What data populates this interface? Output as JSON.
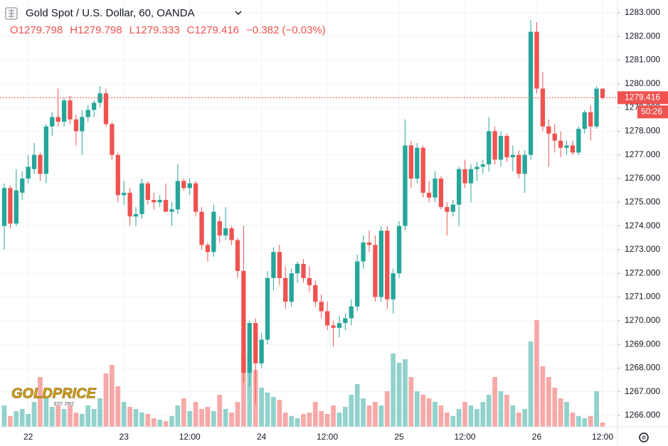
{
  "chart_data": {
    "type": "candlestick",
    "title": "Gold Spot / U.S. Dollar, 60, OANDA",
    "ohlc_labels": [
      "O",
      "H",
      "L",
      "C"
    ],
    "ohlc_values": [
      1279.798,
      1279.798,
      1279.333,
      1279.416
    ],
    "change": "−0.382 (−0.03%)",
    "logo": "GOLDPRICE",
    "logo_sub": "EST. 2002",
    "up_color": "#26a69a",
    "down_color": "#ef5350",
    "ylim": [
      1265.52,
      1283.54
    ],
    "yticks": [
      {
        "value": 1266,
        "label": "1266.000"
      },
      {
        "value": 1267,
        "label": "1267.000"
      },
      {
        "value": 1268,
        "label": "1268.000"
      },
      {
        "value": 1269,
        "label": "1269.000"
      },
      {
        "value": 1270,
        "label": "1270.000"
      },
      {
        "value": 1271,
        "label": "1271.000"
      },
      {
        "value": 1272,
        "label": "1272.000"
      },
      {
        "value": 1273,
        "label": "1273.000"
      },
      {
        "value": 1274,
        "label": "1274.000"
      },
      {
        "value": 1275,
        "label": "1275.000"
      },
      {
        "value": 1276,
        "label": "1276.000"
      },
      {
        "value": 1277,
        "label": "1277.000"
      },
      {
        "value": 1278,
        "label": "1278.000"
      },
      {
        "value": 1279,
        "label": "1279.000"
      },
      {
        "value": 1280,
        "label": "1280.000"
      },
      {
        "value": 1281,
        "label": "1281.000"
      },
      {
        "value": 1282,
        "label": "1282.000"
      },
      {
        "value": 1283,
        "label": "1283.000"
      }
    ],
    "last_price": {
      "value": 1279.416,
      "label": "1279.416"
    },
    "countdown": "50:26",
    "grid": true,
    "categories": [
      null,
      null,
      null,
      null,
      "22",
      null,
      null,
      null,
      null,
      null,
      null,
      null,
      null,
      null,
      null,
      null,
      null,
      null,
      null,
      null,
      "23",
      null,
      null,
      null,
      null,
      null,
      null,
      null,
      null,
      null,
      null,
      "12:00",
      null,
      null,
      null,
      null,
      null,
      null,
      null,
      null,
      null,
      null,
      null,
      "24",
      null,
      null,
      null,
      null,
      null,
      null,
      null,
      null,
      null,
      null,
      "12:00",
      null,
      null,
      null,
      null,
      null,
      null,
      null,
      null,
      null,
      null,
      null,
      "25",
      null,
      null,
      null,
      null,
      null,
      null,
      null,
      null,
      null,
      null,
      "12:00",
      null,
      null,
      null,
      null,
      null,
      null,
      null,
      null,
      null,
      null,
      null,
      "26",
      null,
      null,
      null,
      null,
      null,
      null,
      null,
      null,
      null,
      null,
      "12:00"
    ],
    "open": [
      1274.0,
      1275.6,
      1274.1,
      1275.4,
      1276.0,
      1276.4,
      1277.0,
      1276.2,
      1278.2,
      1278.6,
      1278.4,
      1279.3,
      1278.5,
      1278.0,
      1278.6,
      1278.9,
      1279.2,
      1279.6,
      1278.3,
      1277.0,
      1275.3,
      1275.4,
      1274.4,
      1274.5,
      1275.8,
      1275.1,
      1275.0,
      1275.1,
      1274.6,
      1274.7,
      1275.9,
      1275.6,
      1275.8,
      1274.6,
      1273.2,
      1272.9,
      1274.2,
      1273.6,
      1273.9,
      1273.4,
      1272.1,
      1267.8,
      1269.9,
      1268.2,
      1269.2,
      1271.8,
      1272.9,
      1271.8,
      1270.8,
      1272.0,
      1272.4,
      1271.8,
      1271.5,
      1270.8,
      1270.4,
      1269.8,
      1269.7,
      1269.9,
      1270.1,
      1270.6,
      1272.5,
      1273.3,
      1273.2,
      1271.0,
      1273.8,
      1270.9,
      1272.0,
      1274.0,
      1277.4,
      1276.0,
      1277.3,
      1275.4,
      1275.2,
      1276.0,
      1274.8,
      1274.6,
      1274.9,
      1276.4,
      1275.8,
      1276.4,
      1276.5,
      1276.6,
      1278.0,
      1276.8,
      1277.8,
      1276.9,
      1277.0,
      1276.2,
      1277.0,
      1282.2,
      1279.8,
      1278.2,
      1277.9,
      1277.6,
      1277.3,
      1277.4,
      1277.1,
      1278.1,
      1278.8,
      1278.2,
      1279.798
    ],
    "high": [
      1275.8,
      1275.7,
      1276.4,
      1276.3,
      1277.0,
      1277.5,
      1277.1,
      1278.3,
      1278.8,
      1279.8,
      1279.4,
      1279.5,
      1278.7,
      1278.9,
      1279.1,
      1279.3,
      1279.9,
      1279.8,
      1278.4,
      1277.1,
      1275.9,
      1275.6,
      1274.8,
      1276.0,
      1275.9,
      1275.4,
      1275.3,
      1275.8,
      1275.0,
      1276.6,
      1276.0,
      1276.0,
      1275.9,
      1274.8,
      1273.3,
      1274.9,
      1274.4,
      1274.8,
      1274.0,
      1273.5,
      1274.0,
      1270.0,
      1270.1,
      1269.5,
      1272.1,
      1273.1,
      1273.2,
      1272.3,
      1272.2,
      1272.5,
      1272.6,
      1272.3,
      1271.7,
      1271.1,
      1270.8,
      1270.0,
      1270.2,
      1270.3,
      1270.9,
      1272.8,
      1273.6,
      1273.8,
      1273.6,
      1274.0,
      1274.0,
      1272.2,
      1274.2,
      1278.5,
      1277.6,
      1277.5,
      1277.4,
      1275.9,
      1276.3,
      1276.1,
      1275.0,
      1275.1,
      1276.5,
      1276.8,
      1276.6,
      1276.7,
      1276.8,
      1278.6,
      1278.2,
      1278.0,
      1277.9,
      1277.4,
      1277.2,
      1277.2,
      1282.7,
      1282.6,
      1280.5,
      1278.5,
      1278.3,
      1278.0,
      1277.6,
      1277.6,
      1278.2,
      1278.9,
      1279.1,
      1279.9,
      1279.798
    ],
    "low": [
      1273.0,
      1273.9,
      1274.0,
      1275.1,
      1275.8,
      1276.2,
      1275.9,
      1275.8,
      1277.8,
      1278.2,
      1278.2,
      1278.3,
      1277.4,
      1277.0,
      1278.4,
      1278.6,
      1279.0,
      1278.2,
      1276.8,
      1275.0,
      1274.9,
      1274.0,
      1274.0,
      1274.3,
      1274.9,
      1274.7,
      1274.8,
      1274.6,
      1274.0,
      1274.5,
      1275.5,
      1275.3,
      1274.4,
      1273.0,
      1272.5,
      1272.7,
      1273.3,
      1273.4,
      1273.2,
      1271.8,
      1267.4,
      1267.2,
      1266.5,
      1268.0,
      1269.0,
      1271.3,
      1271.5,
      1270.5,
      1270.6,
      1271.6,
      1271.6,
      1271.2,
      1270.6,
      1270.1,
      1269.6,
      1268.9,
      1269.3,
      1269.6,
      1269.8,
      1270.4,
      1272.2,
      1272.9,
      1270.8,
      1270.8,
      1270.5,
      1270.3,
      1271.8,
      1273.8,
      1275.6,
      1275.8,
      1275.2,
      1275.0,
      1275.0,
      1274.7,
      1273.6,
      1274.4,
      1274.0,
      1275.6,
      1275.0,
      1275.9,
      1276.2,
      1276.3,
      1276.6,
      1276.5,
      1276.7,
      1276.3,
      1276.0,
      1275.4,
      1276.8,
      1279.6,
      1278.0,
      1276.5,
      1277.1,
      1276.9,
      1277.0,
      1277.0,
      1277.0,
      1277.9,
      1277.6,
      1278.1,
      1279.333
    ],
    "close": [
      1275.6,
      1274.1,
      1275.5,
      1276.0,
      1276.5,
      1277.0,
      1276.2,
      1278.2,
      1278.6,
      1278.4,
      1279.3,
      1278.5,
      1278.0,
      1278.6,
      1278.9,
      1279.2,
      1279.6,
      1278.3,
      1277.0,
      1275.3,
      1275.4,
      1274.4,
      1274.5,
      1275.8,
      1275.1,
      1275.0,
      1275.1,
      1274.6,
      1274.7,
      1275.9,
      1275.6,
      1275.8,
      1274.6,
      1273.2,
      1272.9,
      1274.6,
      1273.6,
      1273.9,
      1273.4,
      1272.1,
      1267.8,
      1269.9,
      1268.2,
      1269.2,
      1271.8,
      1272.9,
      1271.8,
      1270.8,
      1272.0,
      1272.4,
      1271.8,
      1271.5,
      1270.8,
      1270.4,
      1269.8,
      1269.7,
      1269.9,
      1270.1,
      1270.6,
      1272.5,
      1273.3,
      1273.2,
      1271.0,
      1273.8,
      1270.9,
      1272.0,
      1274.0,
      1277.4,
      1276.0,
      1277.3,
      1275.4,
      1275.2,
      1276.0,
      1274.8,
      1274.6,
      1274.9,
      1276.4,
      1275.8,
      1276.4,
      1276.5,
      1276.6,
      1278.0,
      1276.8,
      1277.8,
      1276.9,
      1277.0,
      1276.2,
      1277.0,
      1282.2,
      1279.8,
      1278.2,
      1277.9,
      1277.6,
      1277.3,
      1277.4,
      1277.1,
      1278.1,
      1278.8,
      1278.2,
      1279.8,
      1279.416
    ],
    "volume": [
      30,
      15,
      22,
      25,
      18,
      35,
      70,
      42,
      28,
      30,
      25,
      30,
      20,
      18,
      30,
      25,
      40,
      75,
      87,
      57,
      35,
      28,
      25,
      20,
      18,
      12,
      10,
      8,
      15,
      30,
      40,
      22,
      35,
      25,
      28,
      22,
      45,
      25,
      20,
      35,
      100,
      105,
      80,
      55,
      48,
      42,
      38,
      20,
      15,
      12,
      18,
      20,
      35,
      22,
      18,
      30,
      20,
      28,
      45,
      60,
      40,
      30,
      35,
      30,
      50,
      103,
      90,
      95,
      70,
      50,
      45,
      40,
      35,
      30,
      20,
      15,
      25,
      35,
      30,
      25,
      35,
      45,
      70,
      50,
      45,
      30,
      20,
      25,
      120,
      150,
      85,
      70,
      55,
      40,
      35,
      20,
      15,
      12,
      15,
      50,
      6
    ]
  }
}
